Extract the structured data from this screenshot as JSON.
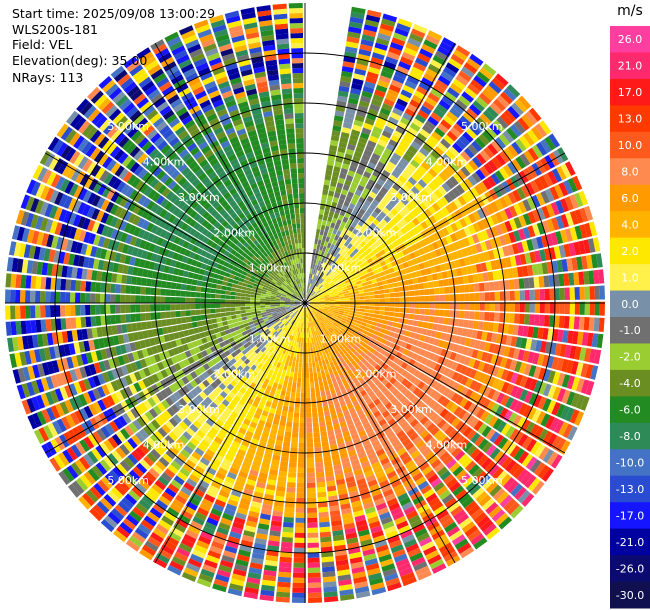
{
  "header": {
    "start_time": "Start time: 2025/09/08 13:00:29",
    "instrument": "WLS200s-181",
    "field": "Field: VEL",
    "elevation": "Elevation(deg): 35.00",
    "nrays": "NRays: 113"
  },
  "colorbar": {
    "unit": "m/s",
    "ticks": [
      "26.0",
      "21.0",
      "17.0",
      "13.0",
      "10.0",
      "8.0",
      "6.0",
      "4.0",
      "2.0",
      "1.0",
      "0.0",
      "-1.0",
      "-2.0",
      "-4.0",
      "-6.0",
      "-8.0",
      "-10.0",
      "-13.0",
      "-17.0",
      "-21.0",
      "-26.0",
      "-30.0"
    ],
    "colors": [
      "#ff3ea0",
      "#ff2a6e",
      "#ff1a1a",
      "#ff3a00",
      "#ff5a1e",
      "#ff8a50",
      "#ff9a00",
      "#ffb300",
      "#ffe800",
      "#fff04a",
      "#7890a8",
      "#707070",
      "#9acd32",
      "#6b8e23",
      "#228b22",
      "#2e8b57",
      "#4472c4",
      "#2a4cd0",
      "#1515ff",
      "#0000a0",
      "#0a0a70",
      "#101050"
    ]
  },
  "chart_data": {
    "type": "ppi",
    "field": "VEL",
    "unit": "m/s",
    "elevation_deg": 35.0,
    "n_rays": 113,
    "range_rings_km": [
      1.0,
      2.0,
      3.0,
      4.0,
      5.0
    ],
    "ring_labels": [
      "1.00km",
      "2.00km",
      "3.00km",
      "4.00km",
      "5.00km"
    ],
    "max_range_km": 6.0,
    "sector_gap_az_deg": [
      0,
      9
    ],
    "colorbar_min": -30.0,
    "colorbar_max": 26.0
  }
}
